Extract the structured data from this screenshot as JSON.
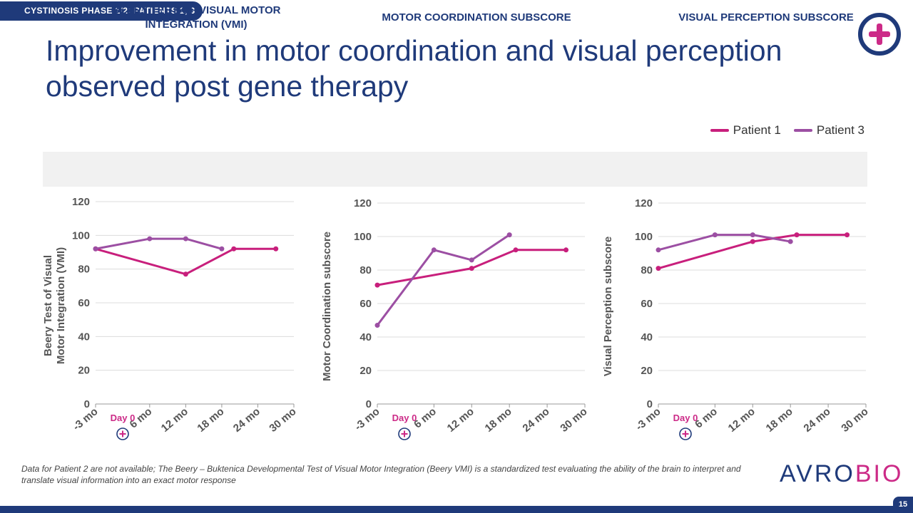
{
  "header": {
    "section_tag": "CYSTINOSIS PHASE 1/2: PATIENTS 1, 3",
    "title": "Improvement in motor coordination and visual perception observed post gene therapy"
  },
  "legend": [
    {
      "name": "Patient 1",
      "color": "#c81f7c"
    },
    {
      "name": "Patient 3",
      "color": "#9c4fa3"
    }
  ],
  "panel_headers": [
    "BEERY TEST OF VISUAL MOTOR INTEGRATION (VMI)",
    "MOTOR COORDINATION SUBSCORE",
    "VISUAL PERCEPTION SUBSCORE"
  ],
  "day0_label": "Day 0",
  "chart_data": [
    {
      "type": "line",
      "title": "",
      "ylabel": "Beery Test of Visual Motor Integration (VMI)",
      "ylim": [
        0,
        120
      ],
      "yticks": [
        0,
        20,
        40,
        60,
        80,
        100,
        120
      ],
      "xlim": [
        -3,
        30
      ],
      "xticks": [
        -3,
        6,
        12,
        18,
        24,
        30
      ],
      "xtick_labels": [
        "-3 mo",
        "6 mo",
        "12 mo",
        "18 mo",
        "24 mo",
        "30 mo"
      ],
      "grid": true,
      "series": [
        {
          "name": "Patient 1",
          "x": [
            -3,
            12,
            20,
            27
          ],
          "y": [
            92,
            77,
            92,
            92
          ]
        },
        {
          "name": "Patient 3",
          "x": [
            -3,
            6,
            12,
            18
          ],
          "y": [
            92,
            98,
            98,
            92
          ]
        }
      ]
    },
    {
      "type": "line",
      "title": "",
      "ylabel": "Motor Coordination subscore",
      "ylim": [
        0,
        120
      ],
      "yticks": [
        0,
        20,
        40,
        60,
        80,
        100,
        120
      ],
      "xlim": [
        -3,
        30
      ],
      "xticks": [
        -3,
        6,
        12,
        18,
        24,
        30
      ],
      "xtick_labels": [
        "-3 mo",
        "6 mo",
        "12 mo",
        "18 mo",
        "24 mo",
        "30 mo"
      ],
      "grid": true,
      "series": [
        {
          "name": "Patient 1",
          "x": [
            -3,
            12,
            19,
            27
          ],
          "y": [
            71,
            81,
            92,
            92
          ]
        },
        {
          "name": "Patient 3",
          "x": [
            -3,
            6,
            12,
            18
          ],
          "y": [
            47,
            92,
            86,
            101
          ]
        }
      ]
    },
    {
      "type": "line",
      "title": "",
      "ylabel": "Visual Perception subscore",
      "ylim": [
        0,
        120
      ],
      "yticks": [
        0,
        20,
        40,
        60,
        80,
        100,
        120
      ],
      "xlim": [
        -3,
        30
      ],
      "xticks": [
        -3,
        6,
        12,
        18,
        24,
        30
      ],
      "xtick_labels": [
        "-3 mo",
        "6 mo",
        "12 mo",
        "18 mo",
        "24 mo",
        "30 mo"
      ],
      "grid": true,
      "series": [
        {
          "name": "Patient 1",
          "x": [
            -3,
            12,
            19,
            27
          ],
          "y": [
            81,
            97,
            101,
            101
          ]
        },
        {
          "name": "Patient 3",
          "x": [
            -3,
            6,
            12,
            18
          ],
          "y": [
            92,
            101,
            101,
            97
          ]
        }
      ]
    }
  ],
  "footnote": "Data for Patient 2 are not available; The Beery – Buktenica Developmental Test of Visual Motor Integration (Beery VMI) is a standardized test evaluating the ability of the brain to interpret and translate visual information into an exact motor response",
  "brand": {
    "part1": "AVRO",
    "part2": "BIO"
  },
  "page_number": "15"
}
